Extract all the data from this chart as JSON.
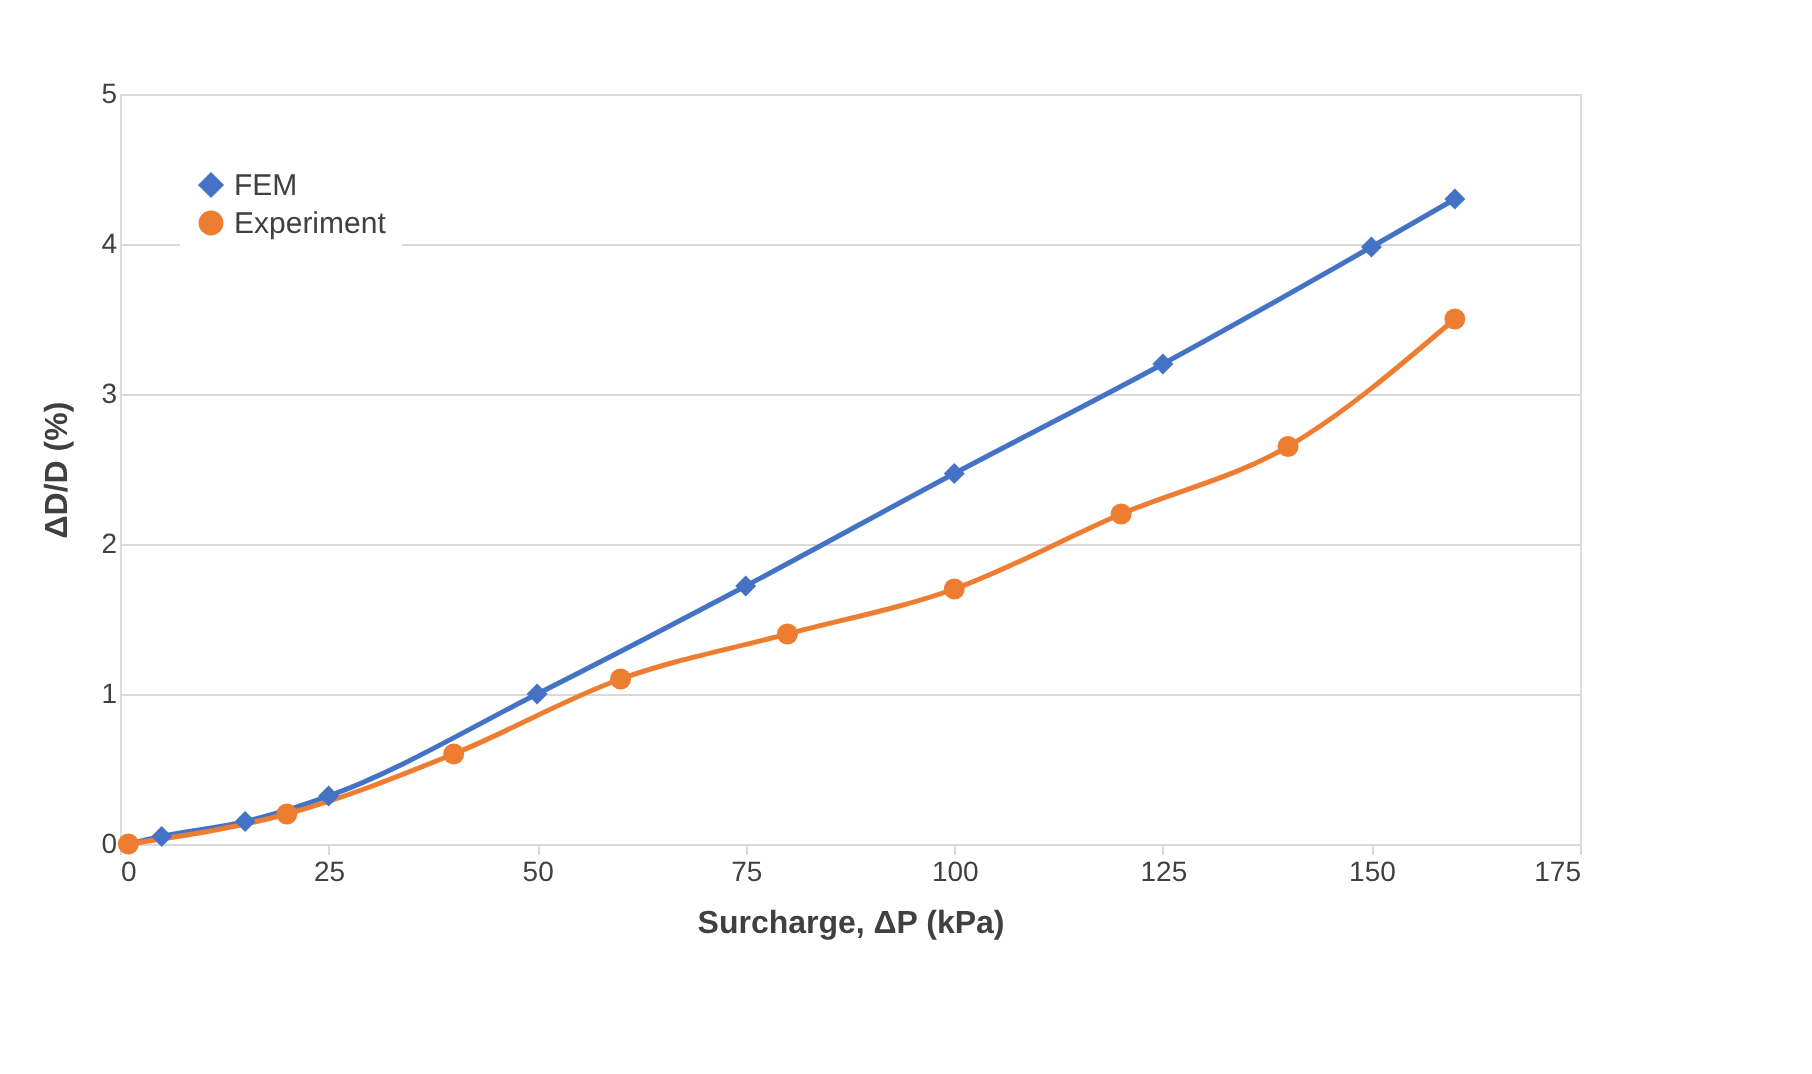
{
  "chart_data": {
    "type": "line",
    "xlabel": "Surcharge, ΔP (kPa)",
    "ylabel": "ΔD/D (%)",
    "xlim": [
      0,
      175
    ],
    "xticks": [
      0,
      25,
      50,
      75,
      100,
      125,
      150,
      175
    ],
    "ylim": [
      0,
      5
    ],
    "yticks": [
      0,
      1,
      2,
      3,
      4,
      5
    ],
    "grid": "y",
    "legend": "top left",
    "series": [
      {
        "name": "FEM",
        "color": "#4472c4",
        "marker": "diamond",
        "x": [
          1,
          5,
          15,
          25,
          50,
          75,
          100,
          125,
          150,
          160
        ],
        "values": [
          0,
          0.05,
          0.15,
          0.32,
          1.0,
          1.72,
          2.47,
          3.2,
          3.98,
          4.3
        ]
      },
      {
        "name": "Experiment",
        "color": "#ed7d31",
        "marker": "circle",
        "x": [
          1,
          20,
          40,
          60,
          80,
          100,
          120,
          140,
          160
        ],
        "values": [
          0,
          0.2,
          0.6,
          1.1,
          1.4,
          1.7,
          2.2,
          2.65,
          3.5
        ]
      }
    ]
  }
}
